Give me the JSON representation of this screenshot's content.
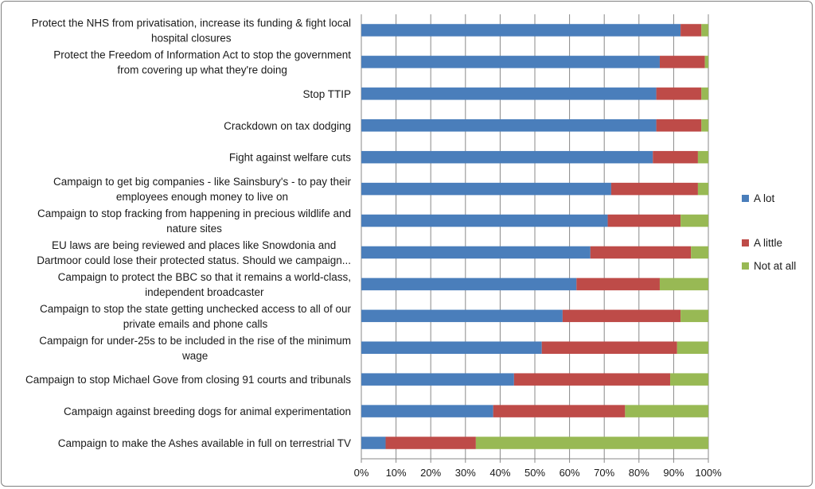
{
  "chart_data": {
    "type": "bar",
    "orientation": "horizontal",
    "stacked": true,
    "percent_stacked": true,
    "categories": [
      [
        "Protect the NHS from privatisation, increase its funding & fight local",
        "hospital closures"
      ],
      [
        "Protect the Freedom of Information Act to stop the government",
        "from covering up what they're doing"
      ],
      [
        "Stop TTIP"
      ],
      [
        "Crackdown on tax dodging"
      ],
      [
        "Fight against welfare cuts"
      ],
      [
        "Campaign to get big companies - like Sainsbury's - to pay their",
        "employees enough money to live on"
      ],
      [
        "Campaign to stop fracking from happening in precious wildlife and",
        "nature sites"
      ],
      [
        "EU laws are being reviewed and places like Snowdonia and",
        "Dartmoor could lose their protected status. Should we campaign..."
      ],
      [
        "Campaign to protect the BBC so that it remains a world-class,",
        "independent broadcaster"
      ],
      [
        "Campaign to stop the state getting unchecked access to all of our",
        "private emails and phone calls"
      ],
      [
        "Campaign for under-25s to be included in the rise of the minimum",
        "wage"
      ],
      [
        "Campaign to stop Michael Gove from closing 91 courts and tribunals"
      ],
      [
        "Campaign against breeding dogs for animal experimentation"
      ],
      [
        "Campaign to make the Ashes available in full on terrestrial TV"
      ]
    ],
    "series": [
      {
        "name": "A lot",
        "color": "#4a7ebb",
        "values": [
          92,
          86,
          85,
          85,
          84,
          72,
          71,
          66,
          62,
          58,
          52,
          44,
          38,
          7
        ]
      },
      {
        "name": "A little",
        "color": "#be4b48",
        "values": [
          6,
          13,
          13,
          13,
          13,
          25,
          21,
          29,
          24,
          34,
          39,
          45,
          38,
          26
        ]
      },
      {
        "name": "Not at all",
        "color": "#98b954",
        "values": [
          2,
          1,
          2,
          2,
          3,
          3,
          8,
          5,
          14,
          8,
          9,
          11,
          24,
          67
        ]
      }
    ],
    "x_ticks": [
      "0%",
      "10%",
      "20%",
      "30%",
      "40%",
      "50%",
      "60%",
      "70%",
      "80%",
      "90%",
      "100%"
    ],
    "xlim": [
      0,
      100
    ],
    "grid": true,
    "legend_position": "right"
  }
}
